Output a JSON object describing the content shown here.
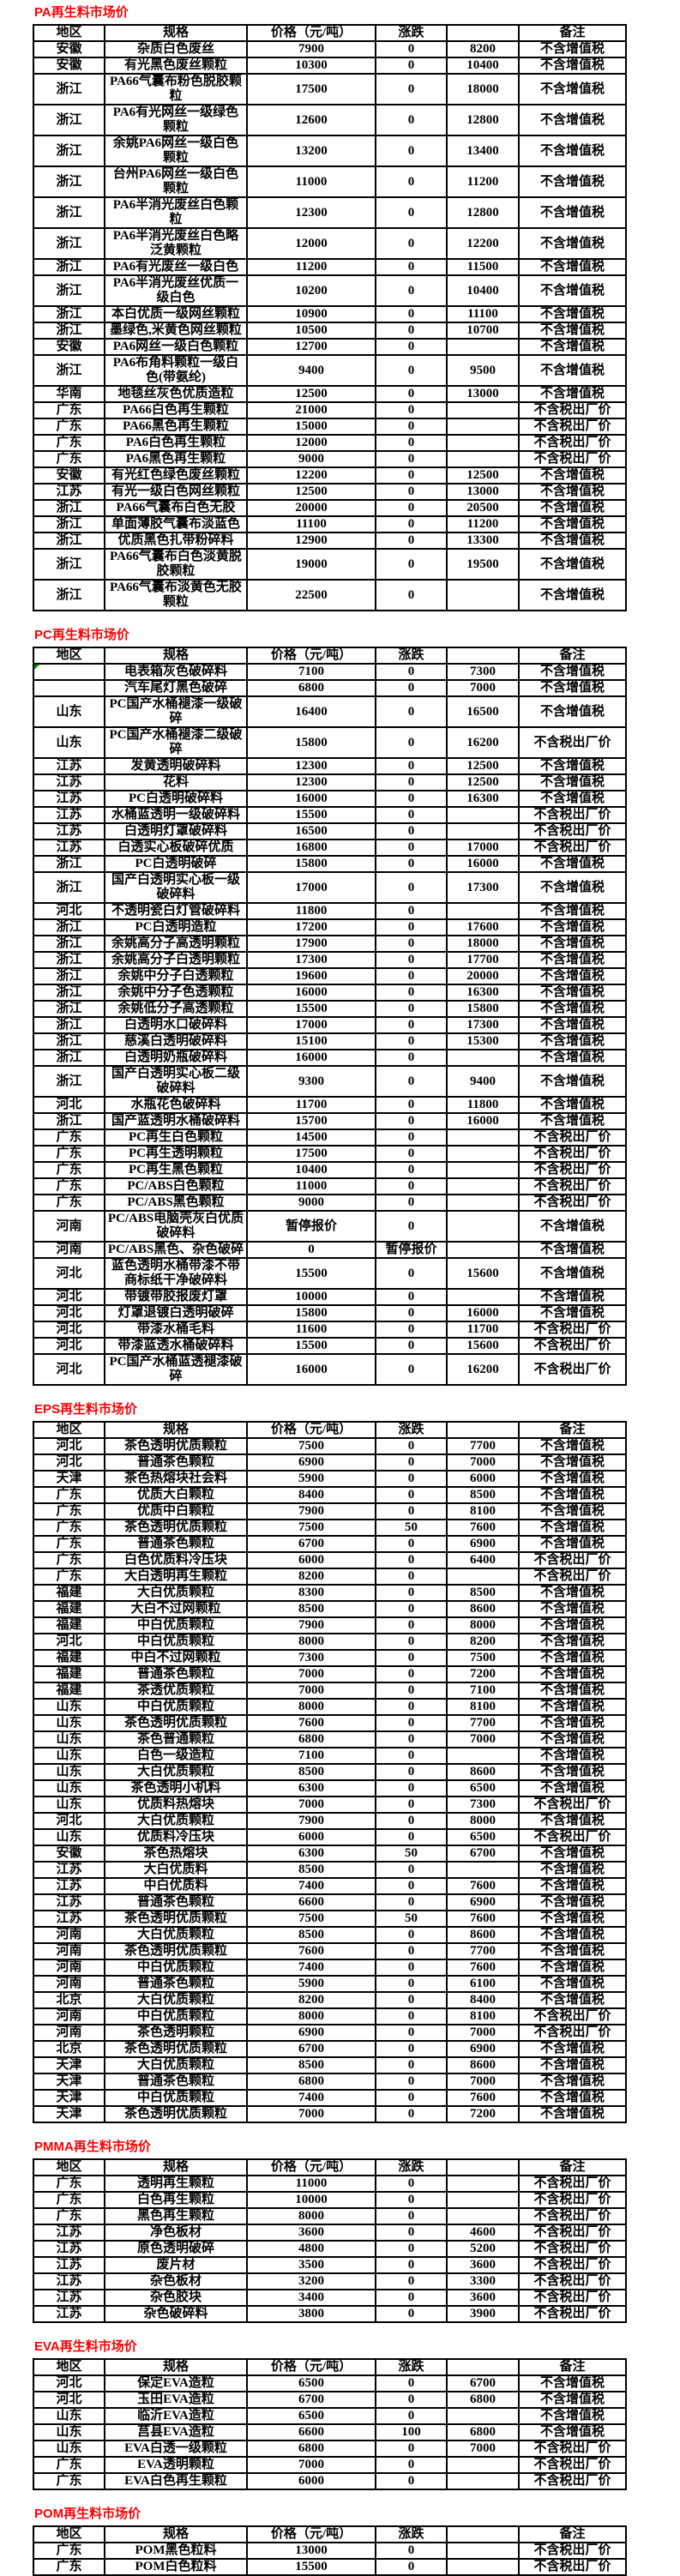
{
  "page_title": "再生料市场价汇总",
  "colors": {
    "title": "#ff0000",
    "border": "#000000",
    "background": "#ffffff",
    "corner_marker": "#009900"
  },
  "columns": [
    "地区",
    "规格",
    "价格（元/吨）",
    "涨跌",
    "",
    "备注"
  ],
  "sections": [
    {
      "key": "pa",
      "title": "PA再生料市场价",
      "rows": [
        [
          "安徽",
          "杂质白色废丝",
          "7900",
          "0",
          "8200",
          "不含增值税"
        ],
        [
          "安徽",
          "有光黑色废丝颗粒",
          "10300",
          "0",
          "10400",
          "不含增值税"
        ],
        [
          "浙江",
          "PA66气囊布粉色脱胶颗粒",
          "17500",
          "0",
          "18000",
          "不含增值税"
        ],
        [
          "浙江",
          "PA6有光网丝一级绿色颗粒",
          "12600",
          "0",
          "12800",
          "不含增值税"
        ],
        [
          "浙江",
          "余姚PA6网丝一级白色颗粒",
          "13200",
          "0",
          "13400",
          "不含增值税"
        ],
        [
          "浙江",
          "台州PA6网丝一级白色颗粒",
          "11000",
          "0",
          "11200",
          "不含增值税"
        ],
        [
          "浙江",
          "PA6半消光废丝白色颗粒",
          "12300",
          "0",
          "12800",
          "不含增值税"
        ],
        [
          "浙江",
          "PA6半消光废丝白色略泛黄颗粒",
          "12000",
          "0",
          "12200",
          "不含增值税"
        ],
        [
          "浙江",
          "PA6有光废丝一级白色",
          "11200",
          "0",
          "11500",
          "不含增值税"
        ],
        [
          "浙江",
          "PA6半消光废丝优质一级白色",
          "10200",
          "0",
          "10400",
          "不含增值税"
        ],
        [
          "浙江",
          "本白优质一级网丝颗粒",
          "10900",
          "0",
          "11100",
          "不含增值税"
        ],
        [
          "浙江",
          "墨绿色,米黄色网丝颗粒",
          "10500",
          "0",
          "10700",
          "不含增值税"
        ],
        [
          "安徽",
          "PA6网丝一级白色颗粒",
          "12700",
          "0",
          "",
          "不含增值税"
        ],
        [
          "浙江",
          "PA6布角料颗粒一级白色(带氨纶)",
          "9400",
          "0",
          "9500",
          "不含增值税"
        ],
        [
          "华南",
          "地毯丝灰色优质造粒",
          "12500",
          "0",
          "13000",
          "不含增值税"
        ],
        [
          "广东",
          "PA66白色再生颗粒",
          "21000",
          "0",
          "",
          "不含税出厂价"
        ],
        [
          "广东",
          "PA66黑色再生颗粒",
          "15000",
          "0",
          "",
          "不含税出厂价"
        ],
        [
          "广东",
          "PA6白色再生颗粒",
          "12000",
          "0",
          "",
          "不含税出厂价"
        ],
        [
          "广东",
          "PA6黑色再生颗粒",
          "9000",
          "0",
          "",
          "不含税出厂价"
        ],
        [
          "安徽",
          "有光红色绿色废丝颗粒",
          "12200",
          "0",
          "12500",
          "不含增值税"
        ],
        [
          "江苏",
          "有光一级白色网丝颗粒",
          "12500",
          "0",
          "13000",
          "不含增值税"
        ],
        [
          "浙江",
          "PA66气囊布白色无胶",
          "20000",
          "0",
          "20500",
          "不含增值税"
        ],
        [
          "浙江",
          "单面薄胶气囊布淡蓝色",
          "11100",
          "0",
          "11200",
          "不含增值税"
        ],
        [
          "浙江",
          "优质黑色扎带粉碎料",
          "12900",
          "0",
          "13300",
          "不含增值税"
        ],
        [
          "浙江",
          "PA66气囊布白色淡黄脱胶颗粒",
          "19000",
          "0",
          "19500",
          "不含增值税"
        ],
        [
          "浙江",
          "PA66气囊布淡黄色无胶颗粒",
          "22500",
          "0",
          "",
          "不含增值税"
        ]
      ]
    },
    {
      "key": "pc",
      "title": "PC再生料市场价",
      "marker_row": 0,
      "rows": [
        [
          "",
          "电表箱灰色破碎料",
          "7100",
          "0",
          "7300",
          "不含增值税"
        ],
        [
          "",
          "汽车尾灯黑色破碎",
          "6800",
          "0",
          "7000",
          "不含增值税"
        ],
        [
          "山东",
          "PC国产水桶褪漆一级破碎",
          "16400",
          "0",
          "16500",
          "不含增值税"
        ],
        [
          "山东",
          "PC国产水桶褪漆二级破碎",
          "15800",
          "0",
          "16200",
          "不含税出厂价"
        ],
        [
          "江苏",
          "发黄透明破碎料",
          "12300",
          "0",
          "12500",
          "不含增值税"
        ],
        [
          "江苏",
          "花料",
          "12300",
          "0",
          "12500",
          "不含增值税"
        ],
        [
          "江苏",
          "PC白透明破碎料",
          "16000",
          "0",
          "16300",
          "不含增值税"
        ],
        [
          "江苏",
          "水桶蓝透明一级破碎料",
          "15500",
          "0",
          "",
          "不含税出厂价"
        ],
        [
          "江苏",
          "白透明灯罩破碎料",
          "16500",
          "0",
          "",
          "不含税出厂价"
        ],
        [
          "江苏",
          "白透实心板破碎优质",
          "16800",
          "0",
          "17000",
          "不含税出厂价"
        ],
        [
          "浙江",
          "PC白透明破碎",
          "15800",
          "0",
          "16000",
          "不含增值税"
        ],
        [
          "浙江",
          "国产白透明实心板一级破碎料",
          "17000",
          "0",
          "17300",
          "不含增值税"
        ],
        [
          "河北",
          "不透明瓷白灯管破碎料",
          "11800",
          "0",
          "",
          "不含增值税"
        ],
        [
          "浙江",
          "PC白透明造粒",
          "17200",
          "0",
          "17600",
          "不含增值税"
        ],
        [
          "浙江",
          "余姚高分子高透明颗粒",
          "17900",
          "0",
          "18000",
          "不含增值税"
        ],
        [
          "浙江",
          "余姚高分子白透明颗粒",
          "17300",
          "0",
          "17700",
          "不含增值税"
        ],
        [
          "浙江",
          "余姚中分子白透颗粒",
          "19600",
          "0",
          "20000",
          "不含增值税"
        ],
        [
          "浙江",
          "余姚中分子色透颗粒",
          "16000",
          "0",
          "16300",
          "不含增值税"
        ],
        [
          "浙江",
          "余姚低分子高透颗粒",
          "15500",
          "0",
          "15800",
          "不含增值税"
        ],
        [
          "浙江",
          "白透明水口破碎料",
          "17000",
          "0",
          "17300",
          "不含增值税"
        ],
        [
          "浙江",
          "慈溪白透明破碎料",
          "15100",
          "0",
          "15300",
          "不含增值税"
        ],
        [
          "浙江",
          "白透明奶瓶破碎料",
          "16000",
          "0",
          "",
          "不含增值税"
        ],
        [
          "浙江",
          "国产白透明实心板二级破碎料",
          "9300",
          "0",
          "9400",
          "不含增值税"
        ],
        [
          "河北",
          "水瓶花色破碎料",
          "11700",
          "0",
          "11800",
          "不含增值税"
        ],
        [
          "浙江",
          "国产蓝透明水桶破碎料",
          "15700",
          "0",
          "16000",
          "不含增值税"
        ],
        [
          "广东",
          "PC再生白色颗粒",
          "14500",
          "0",
          "",
          "不含税出厂价"
        ],
        [
          "广东",
          "PC再生透明颗粒",
          "17500",
          "0",
          "",
          "不含税出厂价"
        ],
        [
          "广东",
          "PC再生黑色颗粒",
          "10400",
          "0",
          "",
          "不含税出厂价"
        ],
        [
          "广东",
          "PC/ABS白色颗粒",
          "11000",
          "0",
          "",
          "不含税出厂价"
        ],
        [
          "广东",
          "PC/ABS黑色颗粒",
          "9000",
          "0",
          "",
          "不含税出厂价"
        ],
        [
          "河南",
          "PC/ABS电脑壳灰白优质破碎料",
          "暂停报价",
          "0",
          "",
          "不含增值税"
        ],
        [
          "河南",
          "PC/ABS黑色、杂色破碎",
          "0",
          "暂停报价",
          "",
          "不含增值税"
        ],
        [
          "河北",
          "蓝色透明水桶带漆不带商标纸干净破碎料",
          "15500",
          "0",
          "15600",
          "不含增值税"
        ],
        [
          "河北",
          "带镀带胶报废灯罩",
          "10000",
          "0",
          "",
          "不含增值税"
        ],
        [
          "河北",
          "灯罩退镀白透明破碎",
          "15800",
          "0",
          "16000",
          "不含增值税"
        ],
        [
          "河北",
          "带漆水桶毛料",
          "11600",
          "0",
          "11700",
          "不含税出厂价"
        ],
        [
          "河北",
          "带漆蓝透水桶破碎料",
          "15500",
          "0",
          "15600",
          "不含税出厂价"
        ],
        [
          "河北",
          "PC国产水桶蓝透褪漆破碎",
          "16000",
          "0",
          "16200",
          "不含税出厂价"
        ]
      ]
    },
    {
      "key": "eps",
      "title": "EPS再生料市场价",
      "rows": [
        [
          "河北",
          "茶色透明优质颗粒",
          "7500",
          "0",
          "7700",
          "不含增值税"
        ],
        [
          "河北",
          "普通茶色颗粒",
          "6900",
          "0",
          "7000",
          "不含增值税"
        ],
        [
          "天津",
          "茶色热熔块社会料",
          "5900",
          "0",
          "6000",
          "不含增值税"
        ],
        [
          "广东",
          "优质大白颗粒",
          "8400",
          "0",
          "8500",
          "不含增值税"
        ],
        [
          "广东",
          "优质中白颗粒",
          "7900",
          "0",
          "8100",
          "不含增值税"
        ],
        [
          "广东",
          "茶色透明优质颗粒",
          "7500",
          "50",
          "7600",
          "不含增值税"
        ],
        [
          "广东",
          "普通茶色颗粒",
          "6700",
          "0",
          "6900",
          "不含增值税"
        ],
        [
          "广东",
          "白色优质料冷压块",
          "6000",
          "0",
          "6400",
          "不含税出厂价"
        ],
        [
          "广东",
          "大白透明再生颗粒",
          "8200",
          "0",
          "",
          "不含税出厂价"
        ],
        [
          "福建",
          "大白优质颗粒",
          "8300",
          "0",
          "8500",
          "不含增值税"
        ],
        [
          "福建",
          "大白不过网颗粒",
          "8500",
          "0",
          "8600",
          "不含增值税"
        ],
        [
          "福建",
          "中白优质颗粒",
          "7900",
          "0",
          "8000",
          "不含增值税"
        ],
        [
          "河北",
          "中白优质颗粒",
          "8000",
          "0",
          "8200",
          "不含增值税"
        ],
        [
          "福建",
          "中白不过网颗粒",
          "7300",
          "0",
          "7500",
          "不含增值税"
        ],
        [
          "福建",
          "普通茶色颗粒",
          "7000",
          "0",
          "7200",
          "不含增值税"
        ],
        [
          "福建",
          "茶透优质颗粒",
          "7000",
          "0",
          "7100",
          "不含增值税"
        ],
        [
          "山东",
          "中白优质颗粒",
          "8000",
          "0",
          "8100",
          "不含增值税"
        ],
        [
          "山东",
          "茶色透明优质颗粒",
          "7600",
          "0",
          "7700",
          "不含增值税"
        ],
        [
          "山东",
          "茶色普通颗粒",
          "6800",
          "0",
          "7000",
          "不含增值税"
        ],
        [
          "山东",
          "白色一级造粒",
          "7100",
          "0",
          "",
          "不含增值税"
        ],
        [
          "山东",
          "大白优质颗粒",
          "8500",
          "0",
          "8600",
          "不含增值税"
        ],
        [
          "山东",
          "茶色透明小机料",
          "6300",
          "0",
          "6500",
          "不含增值税"
        ],
        [
          "山东",
          "优质料热熔块",
          "7000",
          "0",
          "7300",
          "不含税出厂价"
        ],
        [
          "河北",
          "大白优质颗粒",
          "7900",
          "0",
          "8000",
          "不含增值税"
        ],
        [
          "山东",
          "优质料冷压块",
          "6000",
          "0",
          "6500",
          "不含税出厂价"
        ],
        [
          "安徽",
          "茶色热熔块",
          "6300",
          "50",
          "6700",
          "不含增值税"
        ],
        [
          "江苏",
          "大白优质料",
          "8500",
          "0",
          "",
          "不含增值税"
        ],
        [
          "江苏",
          "中白优质料",
          "7400",
          "0",
          "7600",
          "不含增值税"
        ],
        [
          "江苏",
          "普通茶色颗粒",
          "6600",
          "0",
          "6900",
          "不含增值税"
        ],
        [
          "江苏",
          "茶色透明优质颗粒",
          "7500",
          "50",
          "7600",
          "不含增值税"
        ],
        [
          "河南",
          "大白优质颗粒",
          "8500",
          "0",
          "8600",
          "不含增值税"
        ],
        [
          "河南",
          "茶色透明优质颗粒",
          "7600",
          "0",
          "7700",
          "不含增值税"
        ],
        [
          "河南",
          "中白优质颗粒",
          "7400",
          "0",
          "7600",
          "不含增值税"
        ],
        [
          "河南",
          "普通茶色颗粒",
          "5900",
          "0",
          "6100",
          "不含增值税"
        ],
        [
          "北京",
          "大白优质颗粒",
          "8200",
          "0",
          "8400",
          "不含增值税"
        ],
        [
          "河南",
          "中白优质颗粒",
          "8000",
          "0",
          "8100",
          "不含税出厂价"
        ],
        [
          "河南",
          "茶色透明颗粒",
          "6900",
          "0",
          "7000",
          "不含税出厂价"
        ],
        [
          "北京",
          "茶色透明优质颗粒",
          "6700",
          "0",
          "6900",
          "不含增值税"
        ],
        [
          "天津",
          "大白优质颗粒",
          "8500",
          "0",
          "8600",
          "不含增值税"
        ],
        [
          "天津",
          "普通茶色颗粒",
          "6800",
          "0",
          "7000",
          "不含增值税"
        ],
        [
          "天津",
          "中白优质颗粒",
          "7400",
          "0",
          "7600",
          "不含增值税"
        ],
        [
          "天津",
          "茶色透明优质颗粒",
          "7000",
          "0",
          "7200",
          "不含增值税"
        ]
      ]
    },
    {
      "key": "pmma",
      "title": "PMMA再生料市场价",
      "rows": [
        [
          "广东",
          "透明再生颗粒",
          "11000",
          "0",
          "",
          "不含税出厂价"
        ],
        [
          "广东",
          "白色再生颗粒",
          "10000",
          "0",
          "",
          "不含税出厂价"
        ],
        [
          "广东",
          "黑色再生颗粒",
          "8000",
          "0",
          "",
          "不含税出厂价"
        ],
        [
          "江苏",
          "净色板材",
          "3600",
          "0",
          "4600",
          "不含税出厂价"
        ],
        [
          "江苏",
          "原色透明破碎",
          "4800",
          "0",
          "5200",
          "不含税出厂价"
        ],
        [
          "江苏",
          "废片材",
          "3500",
          "0",
          "3600",
          "不含税出厂价"
        ],
        [
          "江苏",
          "杂色板材",
          "3200",
          "0",
          "3300",
          "不含税出厂价"
        ],
        [
          "江苏",
          "杂色胶块",
          "3400",
          "0",
          "3600",
          "不含税出厂价"
        ],
        [
          "江苏",
          "杂色破碎料",
          "3800",
          "0",
          "3900",
          "不含税出厂价"
        ]
      ]
    },
    {
      "key": "eva",
      "title": "EVA再生料市场价",
      "rows": [
        [
          "河北",
          "保定EVA造粒",
          "6500",
          "0",
          "6700",
          "不含增值税"
        ],
        [
          "河北",
          "玉田EVA造粒",
          "6700",
          "0",
          "6800",
          "不含增值税"
        ],
        [
          "山东",
          "临沂EVA造粒",
          "6500",
          "0",
          "",
          "不含增值税"
        ],
        [
          "山东",
          "莒县EVA造粒",
          "6600",
          "100",
          "6800",
          "不含增值税"
        ],
        [
          "山东",
          "EVA白透一级颗粒",
          "6800",
          "0",
          "7000",
          "不含税出厂价"
        ],
        [
          "广东",
          "EVA透明颗粒",
          "7000",
          "0",
          "",
          "不含税出厂价"
        ],
        [
          "广东",
          "EVA白色再生颗粒",
          "6000",
          "0",
          "",
          "不含税出厂价"
        ]
      ]
    },
    {
      "key": "pom",
      "title": "POM再生料市场价",
      "rows": [
        [
          "广东",
          "POM黑色粒料",
          "13000",
          "0",
          "",
          "不含税出厂价"
        ],
        [
          "广东",
          "POM白色粒料",
          "15500",
          "0",
          "",
          "不含税出厂价"
        ]
      ]
    }
  ]
}
